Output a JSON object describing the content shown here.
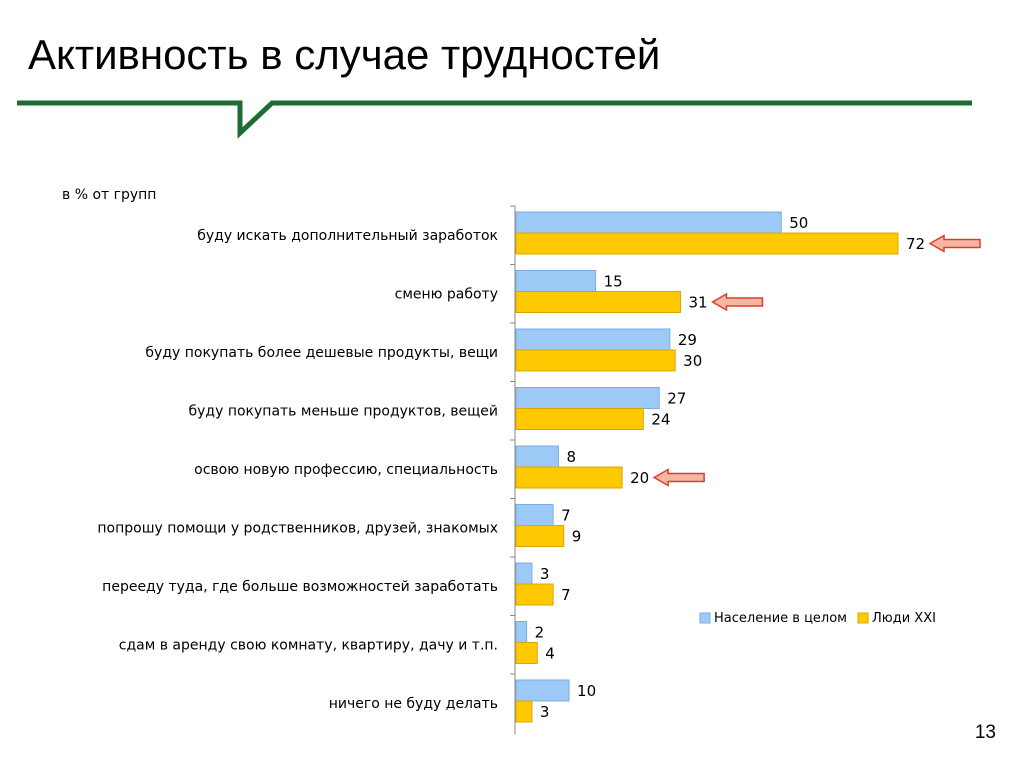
{
  "slide": {
    "title": "Активность в случае трудностей",
    "page_number": "13"
  },
  "colors": {
    "accent_green": "#1e6b34",
    "series_1": "#9dc9f7",
    "series_1_border": "#7aaee0",
    "series_2": "#ffc900",
    "series_2_border": "#d9a800",
    "arrow_fill": "#f6b6a3",
    "arrow_stroke": "#d8402a"
  },
  "chart_data": {
    "type": "bar",
    "orientation": "horizontal",
    "unit_note": "в % от групп",
    "categories": [
      "буду искать дополнительный заработок",
      "сменю работу",
      "буду покупать более дешевые продукты, вещи",
      "буду покупать меньше продуктов, вещей",
      "освою новую профессию, специальность",
      "попрошу помощи у родственников, друзей, знакомых",
      "перееду туда, где больше возможностей заработать",
      "сдам в аренду свою комнату, квартиру, дачу и т.п.",
      "ничего не буду делать"
    ],
    "series": [
      {
        "name": "Население в целом",
        "values": [
          50,
          15,
          29,
          27,
          8,
          7,
          3,
          2,
          10
        ]
      },
      {
        "name": "Люди XXI",
        "values": [
          72,
          31,
          30,
          24,
          20,
          9,
          7,
          4,
          3
        ]
      }
    ],
    "highlighted_categories": [
      0,
      1,
      4
    ],
    "legend_position": "right",
    "grid": false,
    "xlim": [
      0,
      72
    ]
  }
}
